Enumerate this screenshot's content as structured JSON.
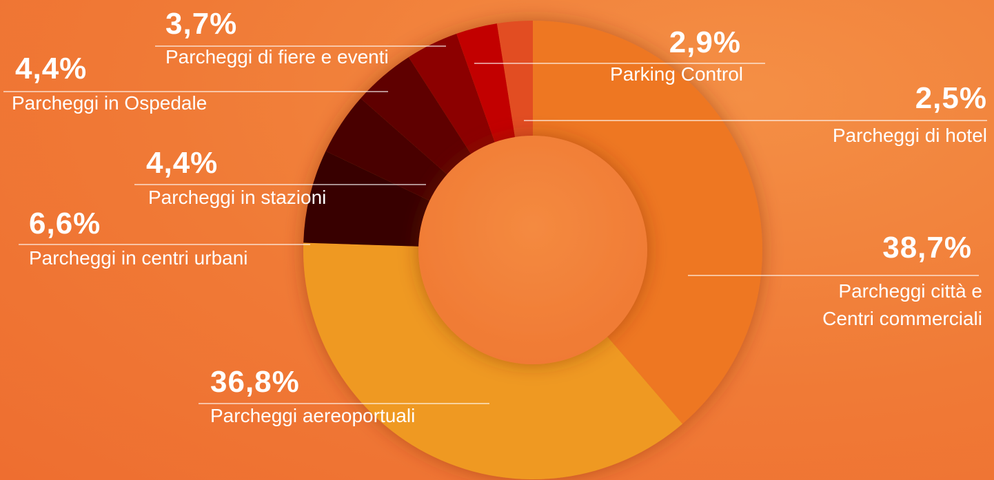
{
  "chart_data": {
    "type": "donut",
    "categories": [
      "Parcheggi città e Centri commerciali",
      "Parcheggi aereoportuali",
      "Parcheggi in centri urbani",
      "Parcheggi in stazioni",
      "Parcheggi in Ospedale",
      "Parcheggi di fiere e eventi",
      "Parking Control",
      "Parcheggi di hotel"
    ],
    "values": [
      38.7,
      36.8,
      6.6,
      4.4,
      4.4,
      3.7,
      2.9,
      2.5
    ],
    "value_labels": [
      "38,7%",
      "36,8%",
      "6,6%",
      "4,4%",
      "4,4%",
      "3,7%",
      "2,9%",
      "2,5%"
    ],
    "colors": [
      "#ee7720",
      "#ef9920",
      "#380000",
      "#4a0000",
      "#5e0000",
      "#8c0000",
      "#c20000",
      "#e24e20"
    ]
  }
}
